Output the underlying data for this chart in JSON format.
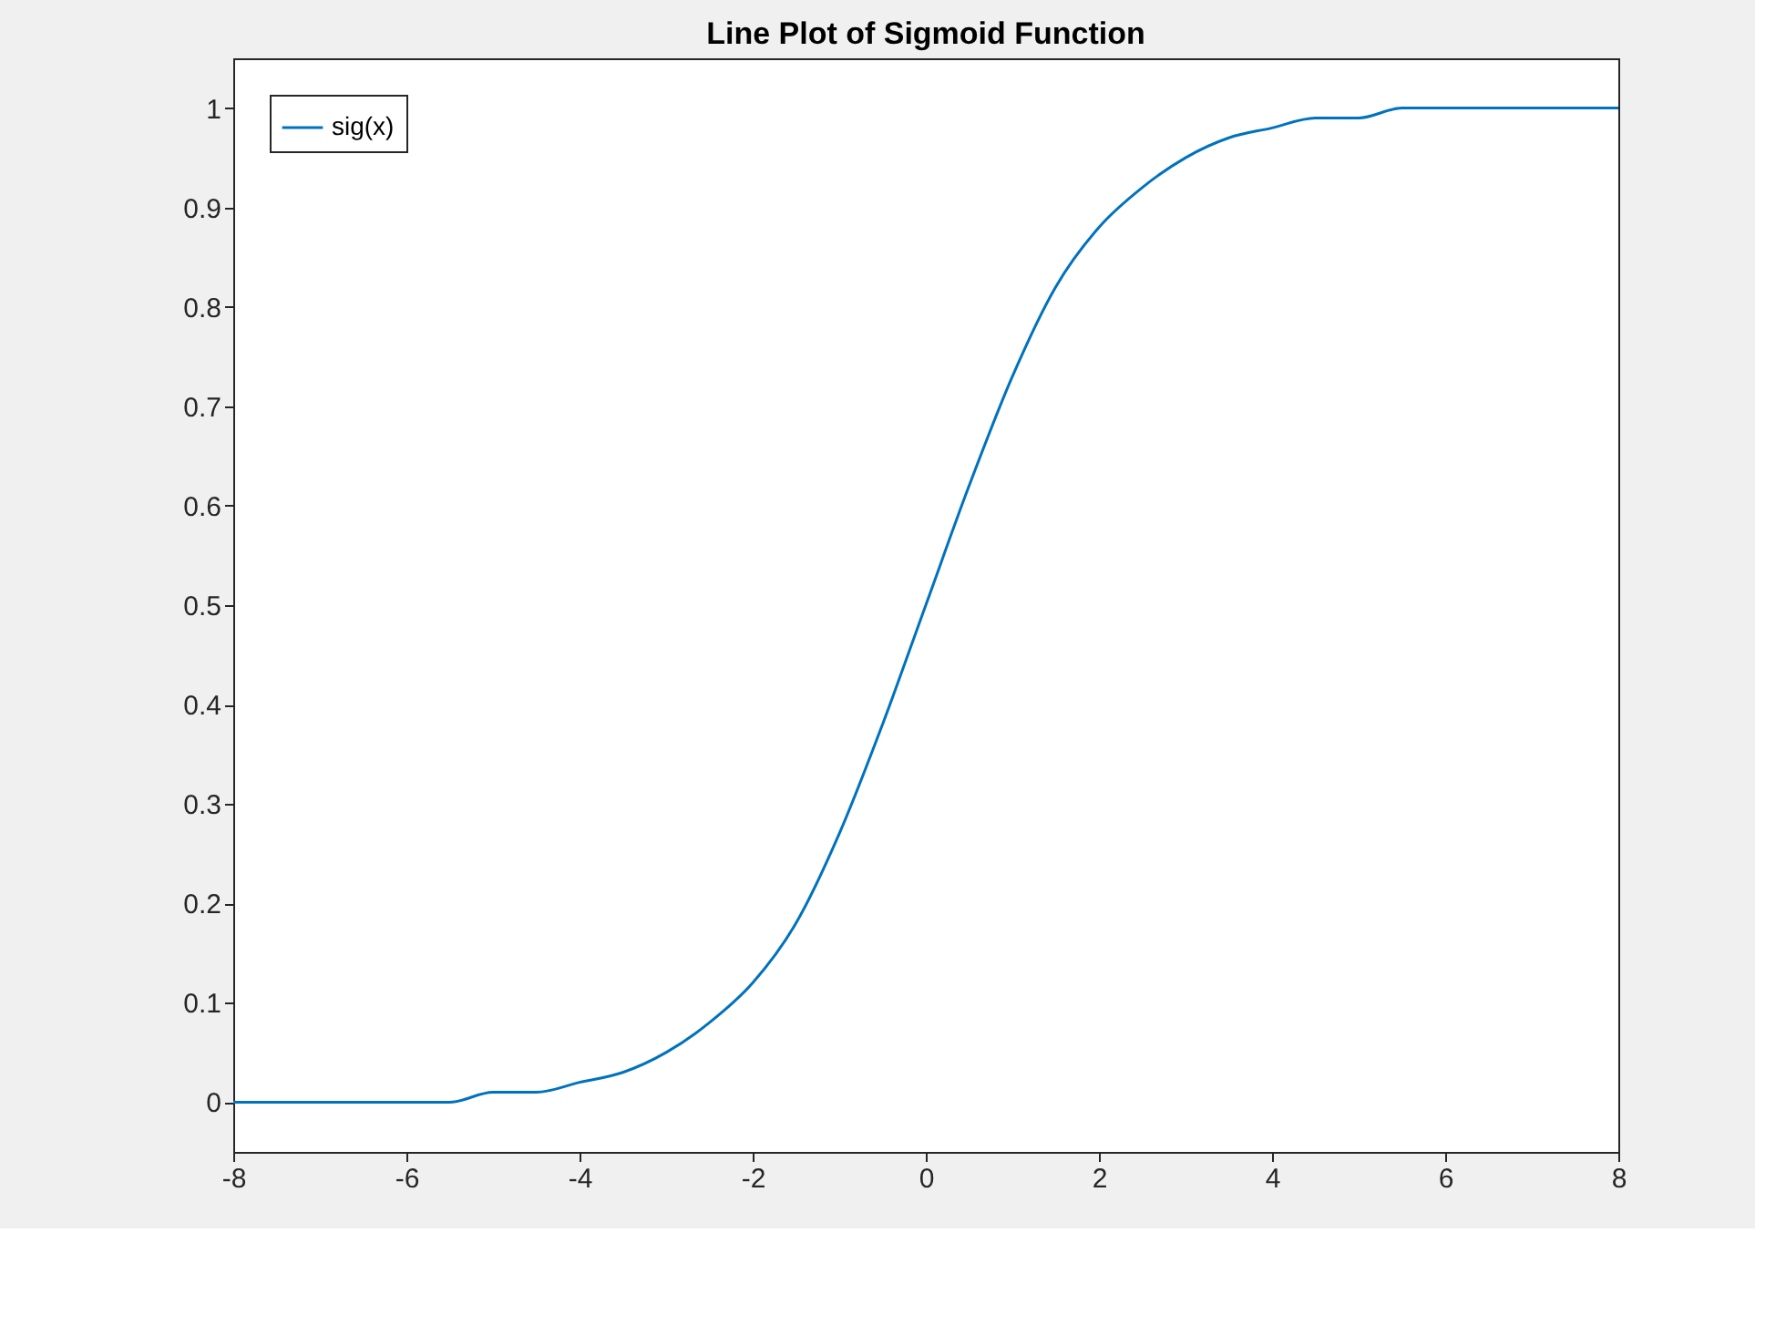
{
  "chart_data": {
    "type": "line",
    "title": "Line Plot of Sigmoid Function",
    "x": [
      -8,
      -7.5,
      -7,
      -6.5,
      -6,
      -5.5,
      -5,
      -4.5,
      -4,
      -3.5,
      -3,
      -2.5,
      -2,
      -1.5,
      -1,
      -0.5,
      0,
      0.5,
      1,
      1.5,
      2,
      2.5,
      3,
      3.5,
      4,
      4.5,
      5,
      5.5,
      6,
      6.5,
      7,
      7.5,
      8
    ],
    "series": [
      {
        "name": "sig(x)",
        "color": "#0072bd",
        "values": [
          0.0,
          0.0,
          0.0,
          0.0,
          0.0,
          0.0,
          0.01,
          0.01,
          0.02,
          0.03,
          0.05,
          0.08,
          0.12,
          0.18,
          0.27,
          0.38,
          0.5,
          0.62,
          0.73,
          0.82,
          0.88,
          0.92,
          0.95,
          0.97,
          0.98,
          0.99,
          0.99,
          1.0,
          1.0,
          1.0,
          1.0,
          1.0,
          1.0
        ]
      }
    ],
    "xlim": [
      -8,
      8
    ],
    "ylim": [
      -0.05,
      1.05
    ],
    "xticks": [
      -8,
      -6,
      -4,
      -2,
      0,
      2,
      4,
      6,
      8
    ],
    "yticks": [
      0,
      0.1,
      0.2,
      0.3,
      0.4,
      0.5,
      0.6,
      0.7,
      0.8,
      0.9,
      1
    ],
    "legend": "top left",
    "grid": false
  }
}
